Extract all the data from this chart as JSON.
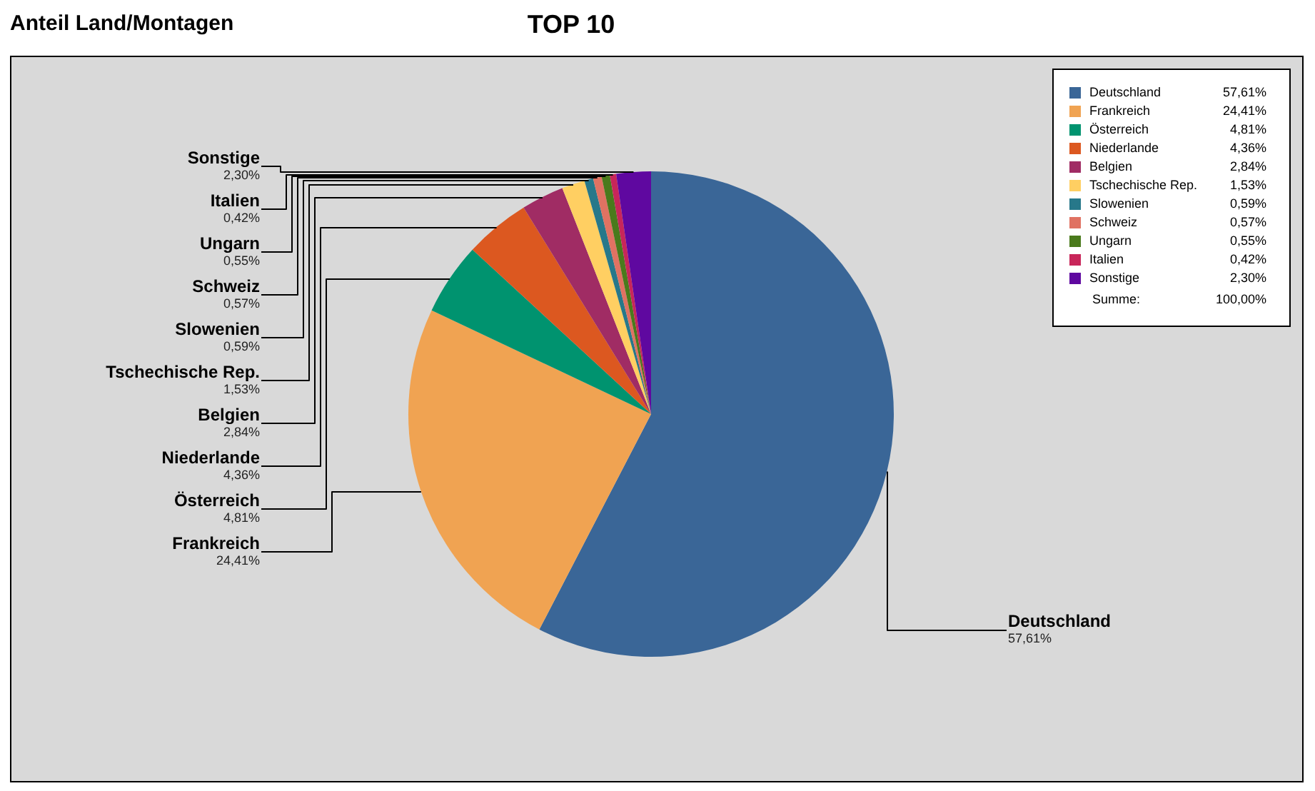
{
  "chart_data": {
    "type": "pie",
    "title": "Anteil Land/Montagen",
    "subtitle": "TOP 10",
    "categories": [
      "Deutschland",
      "Frankreich",
      "Österreich",
      "Niederlande",
      "Belgien",
      "Tschechische Rep.",
      "Slowenien",
      "Schweiz",
      "Ungarn",
      "Italien",
      "Sonstige"
    ],
    "values": [
      57.61,
      24.41,
      4.81,
      4.36,
      2.84,
      1.53,
      0.59,
      0.57,
      0.55,
      0.42,
      2.3
    ],
    "colors": [
      "#3a6697",
      "#f0a352",
      "#00936f",
      "#dc5820",
      "#a02c64",
      "#ffcf62",
      "#27788a",
      "#e07262",
      "#4a7a1c",
      "#c8265a",
      "#5f08a0"
    ],
    "value_labels": [
      "57,61%",
      "24,41%",
      "4,81%",
      "4,36%",
      "2,84%",
      "1,53%",
      "0,59%",
      "0,57%",
      "0,55%",
      "0,42%",
      "2,30%"
    ],
    "legend": "top right",
    "annotations": [
      "Summe:",
      "100,00%"
    ]
  }
}
